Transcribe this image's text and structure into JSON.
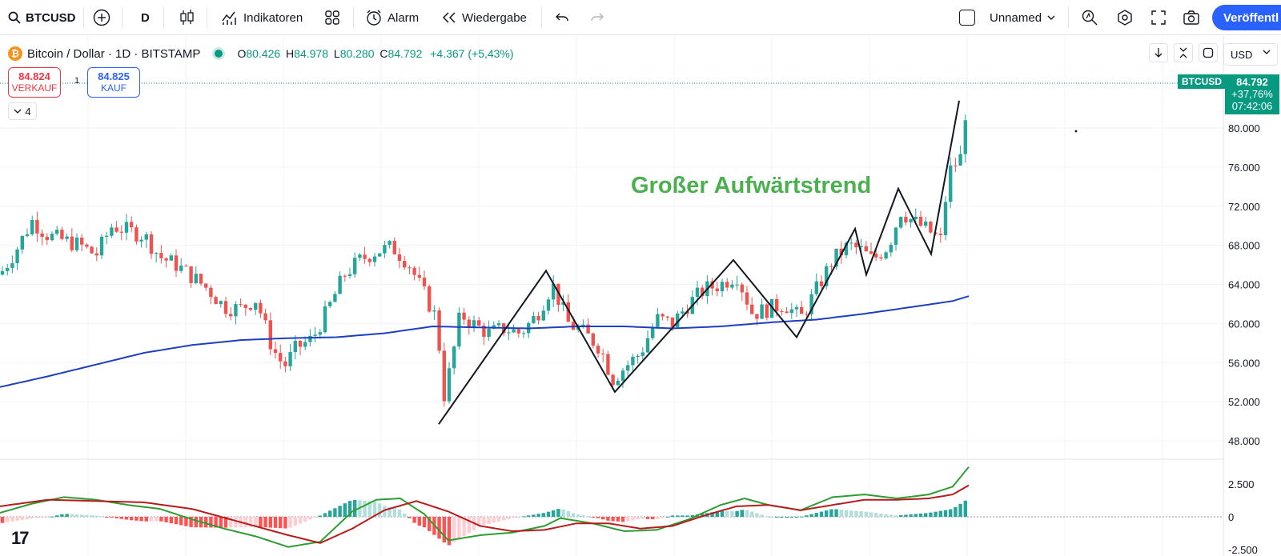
{
  "toolbar": {
    "symbol": "BTCUSD",
    "interval": "D",
    "indicators_label": "Indikatoren",
    "alert_label": "Alarm",
    "replay_label": "Wiedergabe",
    "layout_name": "Unnamed",
    "publish_label": "Veröffentl"
  },
  "legend": {
    "title": "Bitcoin / Dollar · 1D · BITSTAMP",
    "o_label": "O",
    "o_value": "80.426",
    "h_label": "H",
    "h_value": "84.978",
    "l_label": "L",
    "l_value": "80.280",
    "c_label": "C",
    "c_value": "84.792",
    "change": "+4.367 (+5,43%)"
  },
  "trade": {
    "sell_price": "84.824",
    "sell_label": "VERKAUF",
    "spread": "1",
    "buy_price": "84.825",
    "buy_label": "KAUF",
    "collapse_count": "4"
  },
  "price_scale": {
    "currency": "USD",
    "ticks": [
      "80.000",
      "76.000",
      "72.000",
      "68.000",
      "64.000",
      "60.000",
      "56.000",
      "52.000",
      "48.000"
    ],
    "last_symbol": "BTCUSD",
    "last_price": "84.792",
    "last_change": "+37,76%",
    "last_countdown": "07:42:06"
  },
  "macd_scale": {
    "ticks": [
      "2.500",
      "0",
      "-2.500"
    ]
  },
  "annotation": "Großer Aufwärtstrend",
  "colors": {
    "up": "#26a69a",
    "down": "#ef5350",
    "ma": "#1e3fbf",
    "macd": "#2e9c33",
    "signal": "#b71c1c",
    "accent": "#2962ff",
    "annotation": "#4caf50"
  },
  "chart_data": {
    "type": "candlestick",
    "price_range": [
      45000,
      86000
    ],
    "macd_range": [
      -3000,
      4500
    ],
    "moving_average": [
      [
        0,
        53500
      ],
      [
        60,
        54600
      ],
      [
        120,
        55800
      ],
      [
        180,
        57000
      ],
      [
        240,
        57800
      ],
      [
        300,
        58300
      ],
      [
        360,
        58500
      ],
      [
        420,
        58600
      ],
      [
        480,
        59000
      ],
      [
        540,
        59700
      ],
      [
        600,
        59600
      ],
      [
        660,
        59500
      ],
      [
        720,
        59700
      ],
      [
        780,
        59700
      ],
      [
        840,
        59500
      ],
      [
        900,
        59700
      ],
      [
        960,
        60100
      ],
      [
        1020,
        60400
      ],
      [
        1080,
        61000
      ],
      [
        1140,
        61700
      ],
      [
        1190,
        62300
      ],
      [
        1210,
        62800
      ]
    ],
    "candles_keypoints": [
      [
        0,
        65000
      ],
      [
        20,
        67500
      ],
      [
        40,
        70500
      ],
      [
        60,
        69000
      ],
      [
        80,
        68500
      ],
      [
        100,
        68000
      ],
      [
        120,
        67000
      ],
      [
        140,
        70000
      ],
      [
        160,
        69500
      ],
      [
        180,
        69000
      ],
      [
        200,
        66800
      ],
      [
        220,
        66000
      ],
      [
        240,
        64800
      ],
      [
        260,
        63500
      ],
      [
        280,
        61700
      ],
      [
        300,
        61500
      ],
      [
        320,
        62500
      ],
      [
        340,
        57500
      ],
      [
        355,
        55600
      ],
      [
        370,
        57500
      ],
      [
        390,
        58400
      ],
      [
        410,
        61500
      ],
      [
        430,
        65000
      ],
      [
        450,
        66500
      ],
      [
        470,
        67400
      ],
      [
        490,
        67800
      ],
      [
        510,
        66200
      ],
      [
        530,
        63000
      ],
      [
        545,
        60500
      ],
      [
        555,
        52500
      ],
      [
        565,
        56500
      ],
      [
        575,
        61000
      ],
      [
        590,
        60000
      ],
      [
        610,
        59000
      ],
      [
        630,
        59500
      ],
      [
        650,
        59000
      ],
      [
        670,
        60800
      ],
      [
        690,
        64000
      ],
      [
        710,
        60000
      ],
      [
        730,
        59000
      ],
      [
        750,
        57500
      ],
      [
        765,
        54300
      ],
      [
        780,
        55500
      ],
      [
        800,
        57000
      ],
      [
        820,
        60500
      ],
      [
        840,
        60000
      ],
      [
        860,
        62000
      ],
      [
        880,
        63500
      ],
      [
        900,
        64000
      ],
      [
        920,
        65000
      ],
      [
        940,
        61000
      ],
      [
        960,
        61500
      ],
      [
        980,
        62000
      ],
      [
        1000,
        60500
      ],
      [
        1020,
        63500
      ],
      [
        1040,
        66500
      ],
      [
        1060,
        68000
      ],
      [
        1075,
        67500
      ],
      [
        1090,
        66500
      ],
      [
        1110,
        68000
      ],
      [
        1125,
        71500
      ],
      [
        1140,
        70500
      ],
      [
        1160,
        69500
      ],
      [
        1175,
        68500
      ],
      [
        1185,
        75500
      ],
      [
        1200,
        77000
      ],
      [
        1210,
        84800
      ]
    ],
    "trend_lines": [
      [
        [
          548,
          49700
        ],
        [
          682,
          65400
        ],
        [
          768,
          53000
        ],
        [
          916,
          66500
        ],
        [
          995,
          58600
        ],
        [
          1068,
          69700
        ],
        [
          1082,
          65000
        ],
        [
          1122,
          73800
        ],
        [
          1163,
          67100
        ],
        [
          1198,
          82800
        ]
      ]
    ],
    "macd_keypoints": [
      [
        0,
        300
      ],
      [
        40,
        1000
      ],
      [
        80,
        1500
      ],
      [
        120,
        1300
      ],
      [
        160,
        900
      ],
      [
        200,
        600
      ],
      [
        240,
        -200
      ],
      [
        280,
        -900
      ],
      [
        320,
        -1500
      ],
      [
        360,
        -2300
      ],
      [
        400,
        -1900
      ],
      [
        440,
        400
      ],
      [
        470,
        1300
      ],
      [
        500,
        1400
      ],
      [
        530,
        200
      ],
      [
        560,
        -1800
      ],
      [
        600,
        -1400
      ],
      [
        640,
        -1200
      ],
      [
        680,
        -700
      ],
      [
        700,
        -100
      ],
      [
        740,
        -500
      ],
      [
        780,
        -1100
      ],
      [
        820,
        -1000
      ],
      [
        860,
        -200
      ],
      [
        900,
        900
      ],
      [
        930,
        1400
      ],
      [
        960,
        900
      ],
      [
        1000,
        500
      ],
      [
        1040,
        1500
      ],
      [
        1080,
        1700
      ],
      [
        1120,
        1400
      ],
      [
        1160,
        1700
      ],
      [
        1190,
        2300
      ],
      [
        1210,
        3800
      ]
    ],
    "signal_keypoints": [
      [
        0,
        800
      ],
      [
        60,
        1300
      ],
      [
        120,
        1200
      ],
      [
        180,
        1100
      ],
      [
        240,
        600
      ],
      [
        300,
        -400
      ],
      [
        360,
        -1400
      ],
      [
        400,
        -2000
      ],
      [
        440,
        -900
      ],
      [
        480,
        500
      ],
      [
        520,
        1200
      ],
      [
        560,
        400
      ],
      [
        600,
        -700
      ],
      [
        640,
        -1100
      ],
      [
        680,
        -1000
      ],
      [
        720,
        -500
      ],
      [
        760,
        -500
      ],
      [
        800,
        -900
      ],
      [
        840,
        -700
      ],
      [
        880,
        100
      ],
      [
        920,
        800
      ],
      [
        960,
        900
      ],
      [
        1000,
        500
      ],
      [
        1040,
        900
      ],
      [
        1080,
        1300
      ],
      [
        1120,
        1300
      ],
      [
        1160,
        1400
      ],
      [
        1190,
        1700
      ],
      [
        1210,
        2400
      ]
    ]
  }
}
